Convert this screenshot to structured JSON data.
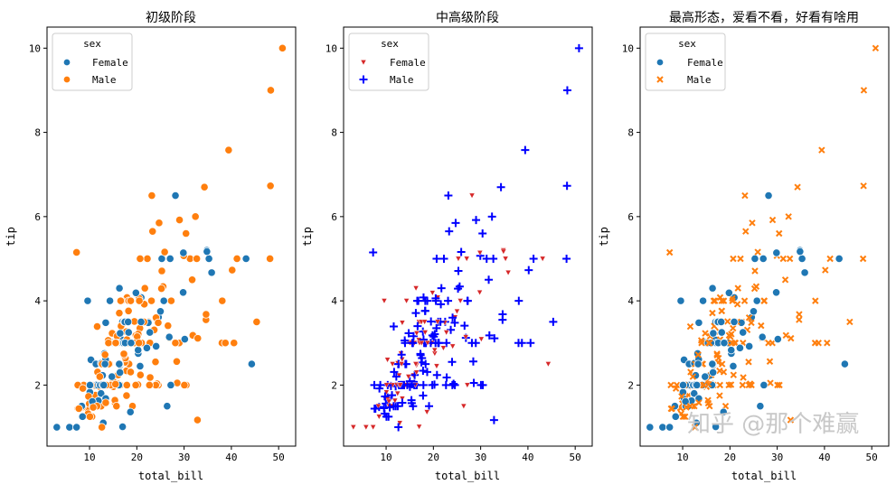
{
  "watermark": "知乎 @那个难赢",
  "colors": {
    "blue": "#1f77b4",
    "orange": "#ff7f0e",
    "red": "#d62728",
    "pure_blue": "#0000ff"
  },
  "tips_columns": [
    "total_bill",
    "tip",
    "sex"
  ],
  "tips": [
    [
      16.99,
      1.01,
      "F"
    ],
    [
      10.34,
      1.66,
      "M"
    ],
    [
      21.01,
      3.5,
      "M"
    ],
    [
      23.68,
      3.31,
      "M"
    ],
    [
      24.59,
      3.61,
      "F"
    ],
    [
      25.29,
      4.71,
      "M"
    ],
    [
      8.77,
      2.0,
      "M"
    ],
    [
      26.88,
      3.12,
      "M"
    ],
    [
      15.04,
      1.96,
      "M"
    ],
    [
      14.78,
      3.23,
      "M"
    ],
    [
      10.27,
      1.71,
      "M"
    ],
    [
      35.26,
      5.0,
      "F"
    ],
    [
      15.42,
      1.57,
      "M"
    ],
    [
      18.43,
      3.0,
      "M"
    ],
    [
      14.83,
      3.02,
      "F"
    ],
    [
      21.58,
      3.92,
      "M"
    ],
    [
      10.33,
      1.67,
      "F"
    ],
    [
      16.29,
      3.71,
      "M"
    ],
    [
      16.97,
      3.5,
      "F"
    ],
    [
      20.65,
      3.35,
      "M"
    ],
    [
      17.92,
      4.08,
      "M"
    ],
    [
      20.29,
      2.75,
      "F"
    ],
    [
      15.77,
      2.23,
      "F"
    ],
    [
      39.42,
      7.58,
      "M"
    ],
    [
      19.82,
      3.18,
      "M"
    ],
    [
      17.81,
      2.34,
      "M"
    ],
    [
      13.37,
      2.0,
      "M"
    ],
    [
      12.69,
      2.0,
      "M"
    ],
    [
      21.7,
      4.3,
      "M"
    ],
    [
      19.65,
      3.0,
      "F"
    ],
    [
      9.55,
      1.45,
      "M"
    ],
    [
      18.35,
      2.5,
      "M"
    ],
    [
      15.06,
      3.0,
      "F"
    ],
    [
      20.69,
      2.45,
      "F"
    ],
    [
      17.78,
      3.27,
      "M"
    ],
    [
      24.06,
      3.6,
      "M"
    ],
    [
      16.31,
      2.0,
      "M"
    ],
    [
      16.93,
      3.07,
      "F"
    ],
    [
      18.69,
      2.31,
      "M"
    ],
    [
      31.27,
      5.0,
      "M"
    ],
    [
      16.04,
      2.24,
      "M"
    ],
    [
      17.46,
      2.54,
      "M"
    ],
    [
      13.94,
      3.06,
      "M"
    ],
    [
      9.68,
      1.32,
      "M"
    ],
    [
      30.4,
      5.6,
      "M"
    ],
    [
      18.29,
      3.0,
      "M"
    ],
    [
      22.23,
      5.0,
      "M"
    ],
    [
      32.4,
      6.0,
      "M"
    ],
    [
      28.55,
      2.05,
      "M"
    ],
    [
      18.04,
      3.0,
      "M"
    ],
    [
      12.54,
      2.5,
      "M"
    ],
    [
      10.29,
      2.6,
      "F"
    ],
    [
      34.81,
      5.2,
      "F"
    ],
    [
      9.94,
      1.56,
      "M"
    ],
    [
      25.56,
      4.34,
      "M"
    ],
    [
      19.49,
      3.51,
      "M"
    ],
    [
      38.01,
      3.0,
      "M"
    ],
    [
      26.41,
      1.5,
      "F"
    ],
    [
      11.24,
      1.76,
      "M"
    ],
    [
      48.27,
      6.73,
      "M"
    ],
    [
      20.29,
      3.21,
      "M"
    ],
    [
      13.81,
      2.0,
      "M"
    ],
    [
      11.02,
      1.98,
      "M"
    ],
    [
      18.29,
      3.76,
      "M"
    ],
    [
      17.59,
      2.64,
      "M"
    ],
    [
      20.08,
      3.15,
      "M"
    ],
    [
      16.45,
      2.47,
      "F"
    ],
    [
      3.07,
      1.0,
      "F"
    ],
    [
      20.23,
      2.01,
      "M"
    ],
    [
      15.01,
      2.09,
      "M"
    ],
    [
      12.02,
      1.97,
      "M"
    ],
    [
      17.07,
      3.0,
      "F"
    ],
    [
      26.86,
      3.14,
      "F"
    ],
    [
      25.28,
      5.0,
      "F"
    ],
    [
      14.73,
      2.2,
      "F"
    ],
    [
      10.51,
      1.25,
      "M"
    ],
    [
      17.92,
      3.08,
      "M"
    ],
    [
      27.2,
      4.0,
      "M"
    ],
    [
      22.76,
      3.0,
      "M"
    ],
    [
      17.29,
      2.71,
      "M"
    ],
    [
      19.44,
      3.0,
      "M"
    ],
    [
      16.66,
      3.4,
      "M"
    ],
    [
      10.07,
      1.83,
      "F"
    ],
    [
      32.68,
      5.0,
      "M"
    ],
    [
      15.98,
      2.03,
      "M"
    ],
    [
      34.83,
      5.17,
      "F"
    ],
    [
      13.03,
      2.0,
      "M"
    ],
    [
      18.28,
      4.0,
      "M"
    ],
    [
      24.71,
      5.85,
      "M"
    ],
    [
      21.16,
      3.0,
      "M"
    ],
    [
      28.97,
      3.0,
      "M"
    ],
    [
      22.49,
      3.5,
      "M"
    ],
    [
      5.75,
      1.0,
      "F"
    ],
    [
      16.32,
      4.3,
      "F"
    ],
    [
      22.75,
      3.25,
      "F"
    ],
    [
      40.17,
      4.73,
      "M"
    ],
    [
      27.28,
      4.0,
      "M"
    ],
    [
      12.03,
      1.5,
      "M"
    ],
    [
      21.01,
      3.0,
      "M"
    ],
    [
      12.46,
      1.5,
      "M"
    ],
    [
      11.35,
      2.5,
      "F"
    ],
    [
      15.38,
      3.0,
      "F"
    ],
    [
      44.3,
      2.5,
      "F"
    ],
    [
      22.42,
      3.48,
      "F"
    ],
    [
      20.92,
      4.08,
      "F"
    ],
    [
      15.36,
      1.64,
      "M"
    ],
    [
      20.49,
      4.06,
      "M"
    ],
    [
      25.21,
      4.29,
      "M"
    ],
    [
      18.24,
      3.76,
      "M"
    ],
    [
      14.31,
      4.0,
      "F"
    ],
    [
      14.0,
      3.0,
      "M"
    ],
    [
      7.25,
      1.0,
      "F"
    ],
    [
      38.07,
      4.0,
      "M"
    ],
    [
      23.95,
      2.55,
      "M"
    ],
    [
      25.71,
      4.0,
      "F"
    ],
    [
      17.31,
      3.5,
      "F"
    ],
    [
      29.93,
      5.07,
      "M"
    ],
    [
      10.65,
      1.5,
      "F"
    ],
    [
      12.43,
      1.8,
      "F"
    ],
    [
      24.08,
      2.92,
      "F"
    ],
    [
      11.69,
      2.31,
      "M"
    ],
    [
      13.42,
      1.68,
      "F"
    ],
    [
      14.26,
      2.5,
      "M"
    ],
    [
      15.95,
      2.0,
      "M"
    ],
    [
      12.48,
      2.52,
      "F"
    ],
    [
      29.8,
      4.2,
      "F"
    ],
    [
      8.52,
      1.48,
      "M"
    ],
    [
      14.52,
      2.0,
      "F"
    ],
    [
      11.38,
      2.0,
      "F"
    ],
    [
      22.82,
      2.18,
      "M"
    ],
    [
      19.08,
      1.5,
      "M"
    ],
    [
      20.27,
      2.83,
      "F"
    ],
    [
      11.17,
      1.5,
      "F"
    ],
    [
      12.26,
      2.0,
      "F"
    ],
    [
      18.26,
      3.25,
      "F"
    ],
    [
      8.51,
      1.25,
      "F"
    ],
    [
      10.33,
      2.0,
      "F"
    ],
    [
      14.15,
      2.0,
      "F"
    ],
    [
      16.0,
      2.0,
      "M"
    ],
    [
      13.16,
      2.75,
      "F"
    ],
    [
      17.47,
      3.5,
      "F"
    ],
    [
      34.3,
      6.7,
      "M"
    ],
    [
      41.19,
      5.0,
      "M"
    ],
    [
      27.05,
      5.0,
      "F"
    ],
    [
      16.43,
      2.3,
      "F"
    ],
    [
      8.35,
      1.5,
      "F"
    ],
    [
      18.64,
      1.36,
      "F"
    ],
    [
      11.87,
      1.63,
      "F"
    ],
    [
      9.78,
      1.73,
      "M"
    ],
    [
      7.51,
      2.0,
      "M"
    ],
    [
      14.07,
      2.5,
      "M"
    ],
    [
      13.13,
      2.0,
      "M"
    ],
    [
      17.26,
      2.74,
      "M"
    ],
    [
      24.55,
      2.0,
      "M"
    ],
    [
      19.77,
      2.0,
      "M"
    ],
    [
      29.85,
      5.14,
      "F"
    ],
    [
      48.17,
      5.0,
      "M"
    ],
    [
      25.0,
      3.75,
      "F"
    ],
    [
      13.39,
      2.61,
      "F"
    ],
    [
      16.49,
      2.0,
      "M"
    ],
    [
      21.5,
      3.5,
      "M"
    ],
    [
      12.66,
      2.5,
      "M"
    ],
    [
      16.21,
      2.0,
      "F"
    ],
    [
      13.81,
      2.0,
      "M"
    ],
    [
      17.51,
      3.0,
      "F"
    ],
    [
      24.52,
      3.48,
      "M"
    ],
    [
      20.76,
      2.24,
      "M"
    ],
    [
      31.71,
      4.5,
      "M"
    ],
    [
      10.59,
      1.61,
      "F"
    ],
    [
      10.63,
      2.0,
      "F"
    ],
    [
      50.81,
      10.0,
      "M"
    ],
    [
      15.81,
      3.16,
      "M"
    ],
    [
      7.25,
      5.15,
      "M"
    ],
    [
      31.85,
      3.18,
      "M"
    ],
    [
      16.82,
      4.0,
      "M"
    ],
    [
      32.9,
      3.11,
      "M"
    ],
    [
      17.89,
      2.0,
      "M"
    ],
    [
      14.48,
      2.0,
      "M"
    ],
    [
      9.6,
      4.0,
      "F"
    ],
    [
      34.63,
      3.55,
      "M"
    ],
    [
      34.65,
      3.68,
      "M"
    ],
    [
      23.33,
      5.65,
      "M"
    ],
    [
      45.35,
      3.5,
      "M"
    ],
    [
      23.17,
      6.5,
      "M"
    ],
    [
      40.55,
      3.0,
      "M"
    ],
    [
      20.69,
      5.0,
      "M"
    ],
    [
      20.9,
      3.5,
      "F"
    ],
    [
      30.46,
      2.0,
      "M"
    ],
    [
      18.15,
      3.5,
      "F"
    ],
    [
      23.1,
      4.0,
      "M"
    ],
    [
      15.69,
      1.5,
      "M"
    ],
    [
      19.81,
      4.19,
      "F"
    ],
    [
      28.44,
      2.56,
      "M"
    ],
    [
      15.48,
      2.02,
      "M"
    ],
    [
      16.58,
      4.0,
      "M"
    ],
    [
      7.56,
      1.44,
      "M"
    ],
    [
      10.34,
      2.0,
      "M"
    ],
    [
      43.11,
      5.0,
      "F"
    ],
    [
      13.0,
      2.0,
      "F"
    ],
    [
      13.51,
      2.0,
      "M"
    ],
    [
      18.71,
      4.0,
      "M"
    ],
    [
      12.74,
      2.01,
      "F"
    ],
    [
      13.0,
      2.0,
      "F"
    ],
    [
      16.4,
      2.5,
      "F"
    ],
    [
      20.53,
      4.0,
      "M"
    ],
    [
      16.47,
      3.23,
      "F"
    ],
    [
      26.59,
      3.41,
      "M"
    ],
    [
      38.73,
      3.0,
      "M"
    ],
    [
      24.27,
      2.03,
      "M"
    ],
    [
      12.76,
      2.23,
      "F"
    ],
    [
      30.06,
      2.0,
      "M"
    ],
    [
      25.89,
      5.16,
      "M"
    ],
    [
      48.33,
      9.0,
      "M"
    ],
    [
      13.27,
      2.5,
      "F"
    ],
    [
      28.17,
      6.5,
      "F"
    ],
    [
      12.9,
      1.1,
      "F"
    ],
    [
      28.15,
      3.0,
      "M"
    ],
    [
      11.59,
      1.5,
      "M"
    ],
    [
      7.74,
      1.44,
      "M"
    ],
    [
      30.14,
      3.09,
      "F"
    ],
    [
      12.16,
      2.2,
      "M"
    ],
    [
      13.42,
      3.48,
      "F"
    ],
    [
      8.58,
      1.92,
      "M"
    ],
    [
      15.98,
      3.0,
      "F"
    ],
    [
      13.42,
      1.58,
      "M"
    ],
    [
      16.27,
      2.5,
      "F"
    ],
    [
      10.09,
      2.0,
      "F"
    ],
    [
      20.45,
      3.0,
      "M"
    ],
    [
      13.28,
      2.72,
      "M"
    ],
    [
      22.12,
      2.88,
      "F"
    ],
    [
      24.01,
      2.0,
      "M"
    ],
    [
      15.69,
      3.0,
      "M"
    ],
    [
      11.61,
      3.39,
      "M"
    ],
    [
      10.77,
      1.47,
      "M"
    ],
    [
      15.53,
      3.0,
      "M"
    ],
    [
      10.07,
      1.25,
      "M"
    ],
    [
      12.6,
      1.0,
      "M"
    ],
    [
      32.83,
      1.17,
      "M"
    ],
    [
      35.83,
      4.67,
      "F"
    ],
    [
      29.03,
      5.92,
      "M"
    ],
    [
      27.18,
      2.0,
      "F"
    ],
    [
      22.67,
      2.0,
      "M"
    ],
    [
      17.82,
      1.75,
      "M"
    ],
    [
      18.78,
      3.0,
      "F"
    ]
  ],
  "chart_data": [
    {
      "type": "scatter",
      "title": "初级阶段",
      "xlabel": "total_bill",
      "ylabel": "tip",
      "xlim": [
        1,
        53.6
      ],
      "ylim": [
        0.55,
        10.5
      ],
      "xticks": [
        "10",
        "20",
        "30",
        "40",
        "50"
      ],
      "yticks": [
        "2",
        "4",
        "6",
        "8",
        "10"
      ],
      "grid": false,
      "legend_placement": "upper-left",
      "legend_title": "sex",
      "series": [
        {
          "name": "Female",
          "key": "F",
          "marker": "circle",
          "color": "#1f77b4"
        },
        {
          "name": "Male",
          "key": "M",
          "marker": "circle",
          "color": "#ff7f0e"
        }
      ]
    },
    {
      "type": "scatter",
      "title": "中高级阶段",
      "xlabel": "total_bill",
      "ylabel": "tip",
      "xlim": [
        1,
        53.6
      ],
      "ylim": [
        0.55,
        10.5
      ],
      "xticks": [
        "10",
        "20",
        "30",
        "40",
        "50"
      ],
      "yticks": [
        "2",
        "4",
        "6",
        "8",
        "10"
      ],
      "grid": false,
      "legend_placement": "upper-left",
      "legend_title": "sex",
      "series": [
        {
          "name": "Female",
          "key": "F",
          "marker": "triangle-down",
          "color": "#d62728"
        },
        {
          "name": "Male",
          "key": "M",
          "marker": "plus",
          "color": "#0000ff"
        }
      ]
    },
    {
      "type": "scatter",
      "title": "最高形态，爱看不看，好看有啥用",
      "xlabel": "total_bill",
      "ylabel": "tip",
      "xlim": [
        1,
        53.6
      ],
      "ylim": [
        0.55,
        10.5
      ],
      "xticks": [
        "10",
        "20",
        "30",
        "40",
        "50"
      ],
      "yticks": [
        "2",
        "4",
        "6",
        "8",
        "10"
      ],
      "grid": false,
      "legend_placement": "upper-left",
      "legend_title": "sex",
      "series": [
        {
          "name": "Female",
          "key": "F",
          "marker": "circle",
          "color": "#1f77b4"
        },
        {
          "name": "Male",
          "key": "M",
          "marker": "x",
          "color": "#ff7f0e"
        }
      ]
    }
  ]
}
